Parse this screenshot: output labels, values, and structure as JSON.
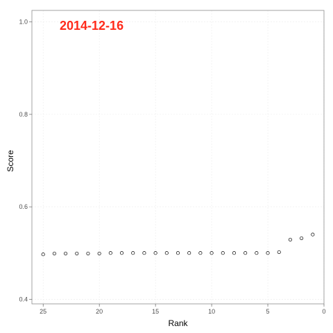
{
  "chart_data": {
    "type": "scatter",
    "annotation": "2014-12-16",
    "xlabel": "Rank",
    "ylabel": "Score",
    "xlim": [
      26,
      0
    ],
    "ylim": [
      0.39,
      1.025
    ],
    "x_reversed": true,
    "x_ticks": [
      25,
      20,
      15,
      10,
      5,
      0
    ],
    "x_tick_labels": [
      "25",
      "20",
      "15",
      "10",
      "5",
      "0"
    ],
    "y_ticks": [
      0.4,
      0.6,
      0.8,
      1.0
    ],
    "y_tick_labels": [
      "0.4",
      "0.6",
      "0.8",
      "1.0"
    ],
    "grid": true,
    "colors": {
      "annotation": "#ff2a1a",
      "points": "#000000"
    },
    "points": [
      {
        "x": 25,
        "y": 0.497
      },
      {
        "x": 24,
        "y": 0.499
      },
      {
        "x": 23,
        "y": 0.499
      },
      {
        "x": 22,
        "y": 0.499
      },
      {
        "x": 21,
        "y": 0.499
      },
      {
        "x": 20,
        "y": 0.499
      },
      {
        "x": 19,
        "y": 0.5
      },
      {
        "x": 18,
        "y": 0.5
      },
      {
        "x": 17,
        "y": 0.5
      },
      {
        "x": 16,
        "y": 0.5
      },
      {
        "x": 15,
        "y": 0.5
      },
      {
        "x": 14,
        "y": 0.5
      },
      {
        "x": 13,
        "y": 0.5
      },
      {
        "x": 12,
        "y": 0.5
      },
      {
        "x": 11,
        "y": 0.5
      },
      {
        "x": 10,
        "y": 0.5
      },
      {
        "x": 9,
        "y": 0.5
      },
      {
        "x": 8,
        "y": 0.5
      },
      {
        "x": 7,
        "y": 0.5
      },
      {
        "x": 6,
        "y": 0.5
      },
      {
        "x": 5,
        "y": 0.5
      },
      {
        "x": 4,
        "y": 0.502
      },
      {
        "x": 3,
        "y": 0.529
      },
      {
        "x": 2,
        "y": 0.532
      },
      {
        "x": 1,
        "y": 0.54
      }
    ]
  }
}
